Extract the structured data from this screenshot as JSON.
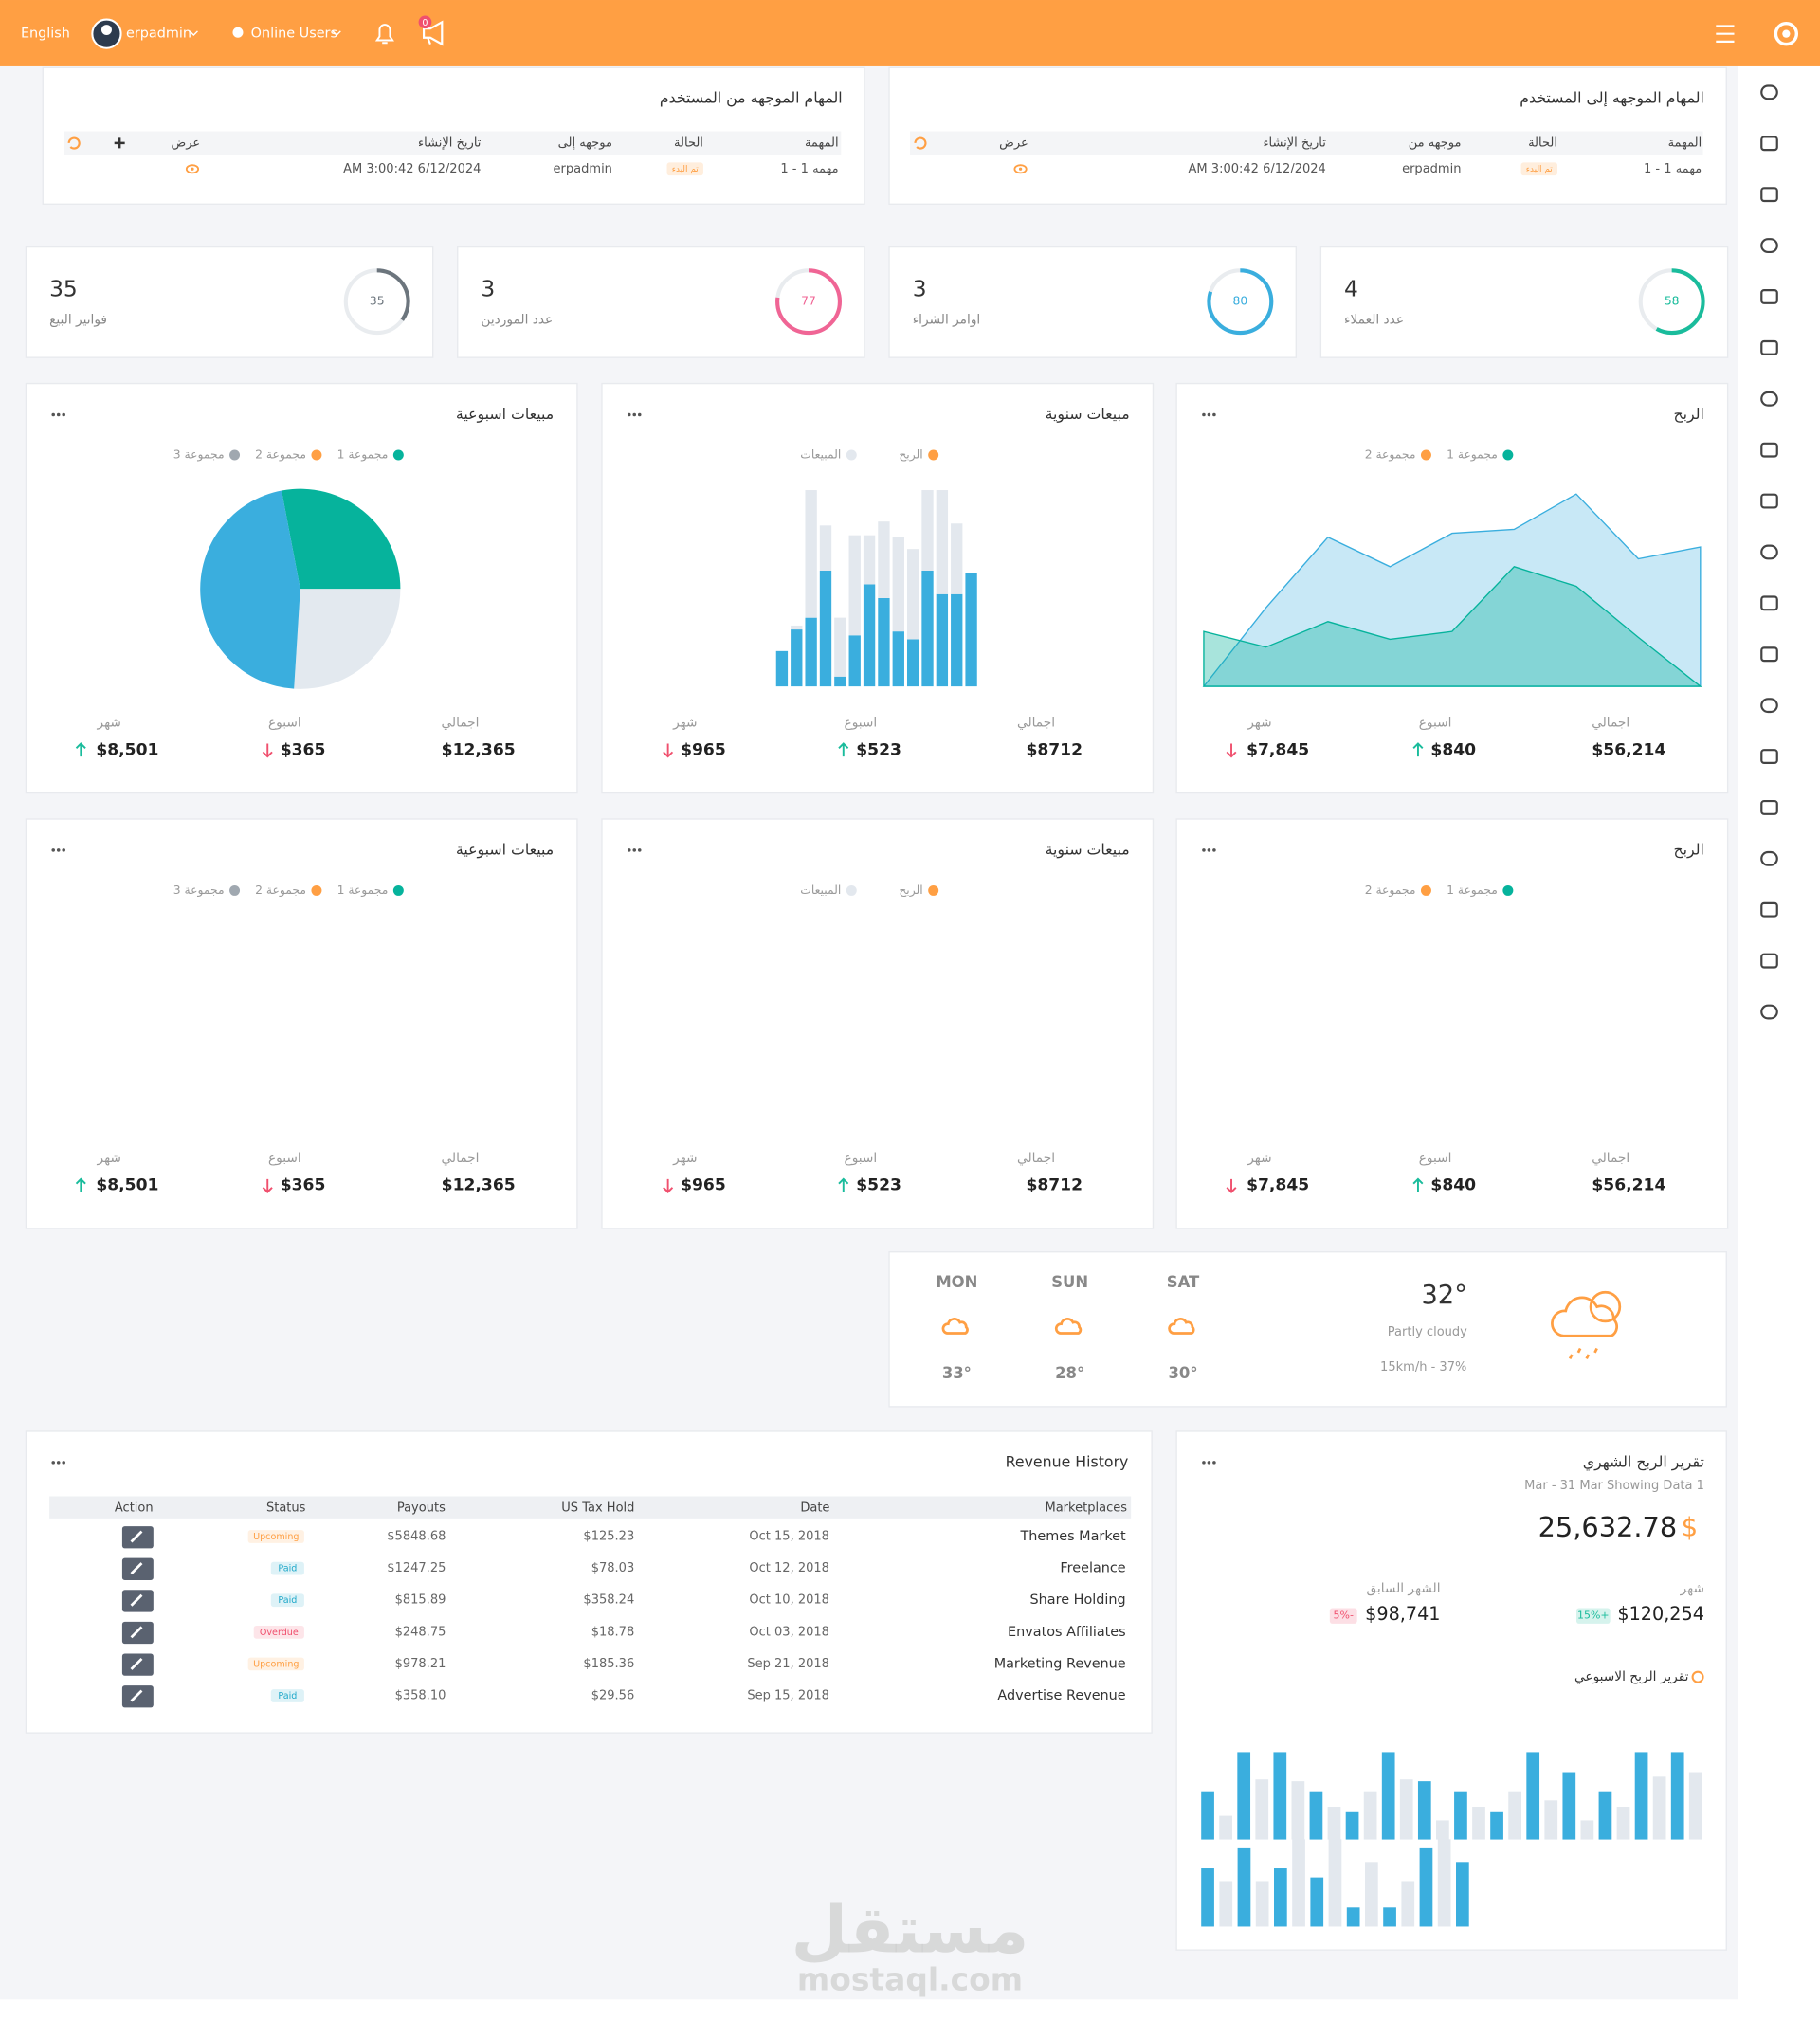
{
  "topbar": {
    "language": "English",
    "user": "erpadmin",
    "online_users": "Online Users",
    "notification_count": "0",
    "color": "#ff9f43"
  },
  "task_panels": [
    {
      "title": "المهام الموجهه إلى المستخدم",
      "columns": [
        "المهمة",
        "الحالة",
        "موجهه من",
        "تاريخ الإنشاء",
        "عرض"
      ],
      "rows": [
        [
          "مهمه 1 - 1",
          "تم البدء",
          "erpadmin",
          "AM 3:00:42 6/12/2024"
        ]
      ]
    },
    {
      "title": "المهام الموجهه من المستخدم",
      "columns": [
        "المهمة",
        "الحالة",
        "موجهه إلى",
        "تاريخ الإنشاء",
        "عرض"
      ],
      "rows": [
        [
          "مهمه 1 - 1",
          "تم البدء",
          "erpadmin",
          "AM 3:00:42 6/12/2024"
        ]
      ]
    }
  ],
  "stat_cards": [
    {
      "value": "4",
      "label": "عدد العملاء",
      "ring": 58,
      "color": "#1abc9c"
    },
    {
      "value": "3",
      "label": "اوامر الشراء",
      "ring": 80,
      "color": "#3aaede"
    },
    {
      "value": "3",
      "label": "عدد الموردين",
      "ring": 77,
      "color": "#f06595"
    },
    {
      "value": "35",
      "label": "فواتير البيع",
      "ring": 35,
      "color": "#6c757d"
    }
  ],
  "chart_cards": [
    {
      "title": "الربح",
      "type": "area",
      "legend": [
        {
          "name": "مجموعة 1",
          "color": "#06b39c"
        },
        {
          "name": "مجموعة 2",
          "color": "#ff9f43"
        }
      ],
      "ylim": [
        0,
        100
      ],
      "series": [
        {
          "color": "#3aaede",
          "values": [
            0,
            40,
            76,
            61,
            78,
            80,
            98,
            65,
            71
          ]
        },
        {
          "color": "#06b39c",
          "values": [
            28,
            20,
            33,
            24,
            28,
            61,
            51,
            25,
            0
          ]
        }
      ],
      "stats": [
        {
          "label": "اجمالي",
          "value": "$56,214"
        },
        {
          "label": "اسبوع",
          "value": "$840",
          "trend": "up"
        },
        {
          "label": "شهر",
          "value": "$7,845",
          "trend": "down"
        }
      ]
    },
    {
      "title": "مبيعات سنوية",
      "type": "bar",
      "legend": [
        {
          "name": "الربح",
          "color": "#ff9f43"
        },
        {
          "name": "المبيعات",
          "color": "#e3e8ee"
        }
      ],
      "ylim": [
        0,
        100
      ],
      "series": [
        {
          "color": "#3aaede",
          "values": [
            18,
            29,
            35,
            59,
            5,
            26,
            52,
            45,
            28,
            24,
            59,
            47,
            47,
            58
          ]
        },
        {
          "color": "#e3e8ee",
          "values": [
            0,
            2,
            65,
            23,
            30,
            51,
            25,
            39,
            48,
            46,
            41,
            53,
            36,
            0
          ]
        }
      ],
      "stats": [
        {
          "label": "اجمالي",
          "value": "$8712"
        },
        {
          "label": "اسبوع",
          "value": "$523",
          "trend": "up"
        },
        {
          "label": "شهر",
          "value": "$965",
          "trend": "down"
        }
      ]
    },
    {
      "title": "مبيعات اسبوعية",
      "type": "pie",
      "legend": [
        {
          "name": "مجموعة 1",
          "color": "#06b39c"
        },
        {
          "name": "مجموعة 2",
          "color": "#ff9f43"
        },
        {
          "name": "مجموعة 3",
          "color": "#a0a8b0"
        }
      ],
      "values": [
        28,
        26,
        46
      ],
      "colors": [
        "#06b39c",
        "#e3e9ef",
        "#3aaede"
      ],
      "stats": [
        {
          "label": "اجمالي",
          "value": "$12,365"
        },
        {
          "label": "اسبوع",
          "value": "$365",
          "trend": "down"
        },
        {
          "label": "شهر",
          "value": "$8,501",
          "trend": "up"
        }
      ]
    },
    {
      "title": "الربح",
      "legend": [
        {
          "name": "مجموعة 1",
          "color": "#06b39c"
        },
        {
          "name": "مجموعة 2",
          "color": "#ff9f43"
        }
      ],
      "stats": [
        {
          "label": "اجمالي",
          "value": "$56,214"
        },
        {
          "label": "اسبوع",
          "value": "$840",
          "trend": "up"
        },
        {
          "label": "شهر",
          "value": "$7,845",
          "trend": "down"
        }
      ]
    },
    {
      "title": "مبيعات سنوية",
      "legend": [
        {
          "name": "الربح",
          "color": "#ff9f43"
        },
        {
          "name": "المبيعات",
          "color": "#e3e8ee"
        }
      ],
      "stats": [
        {
          "label": "اجمالي",
          "value": "$8712"
        },
        {
          "label": "اسبوع",
          "value": "$523",
          "trend": "up"
        },
        {
          "label": "شهر",
          "value": "$965",
          "trend": "down"
        }
      ]
    },
    {
      "title": "مبيعات اسبوعية",
      "legend": [
        {
          "name": "مجموعة 1",
          "color": "#06b39c"
        },
        {
          "name": "مجموعة 2",
          "color": "#ff9f43"
        },
        {
          "name": "مجموعة 3",
          "color": "#a0a8b0"
        }
      ],
      "stats": [
        {
          "label": "اجمالي",
          "value": "$12,365"
        },
        {
          "label": "اسبوع",
          "value": "$365",
          "trend": "down"
        },
        {
          "label": "شهر",
          "value": "$8,501",
          "trend": "up"
        }
      ]
    }
  ],
  "weather": {
    "temperature": "32°",
    "condition": "Partly cloudy",
    "wind": "15km/h - 37%",
    "days": [
      {
        "day": "SAT",
        "temperature": "30°"
      },
      {
        "day": "SUN",
        "temperature": "28°"
      },
      {
        "day": "MON",
        "temperature": "33°"
      }
    ]
  },
  "revenue_history": {
    "title": "Revenue History",
    "columns": [
      "Marketplaces",
      "Date",
      "US Tax Hold",
      "Payouts",
      "Status",
      "Action"
    ],
    "rows": [
      [
        "Themes Market",
        "Oct 15, 2018",
        "$125.23",
        "$5848.68",
        "Upcoming"
      ],
      [
        "Freelance",
        "Oct 12, 2018",
        "$78.03",
        "$1247.25",
        "Paid"
      ],
      [
        "Share Holding",
        "Oct 10, 2018",
        "$358.24",
        "$815.89",
        "Paid"
      ],
      [
        "Envatos Affiliates",
        "Oct 03, 2018",
        "$18.78",
        "$248.75",
        "Overdue"
      ],
      [
        "Marketing Revenue",
        "Sep 21, 2018",
        "$185.36",
        "$978.21",
        "Upcoming"
      ],
      [
        "Advertise Revenue",
        "Sep 15, 2018",
        "$29.56",
        "$358.10",
        "Paid"
      ]
    ],
    "status_colors": [
      "#ff9f43",
      "#1fa8c9",
      "#1fa8c9",
      "#f0506e",
      "#ff9f43",
      "#1fa8c9"
    ]
  },
  "monthly_report": {
    "title": "تقرير الربح الشهري",
    "subtitle": "Mar - 31 Mar Showing Data 1",
    "total": "25,632.78",
    "currency": "$",
    "metrics": [
      {
        "label": "شهر",
        "value": "$120,254",
        "change": "+15%",
        "color": "#1abc9c"
      },
      {
        "label": "الشهر السابق",
        "value": "$98,741",
        "change": "-5%",
        "color": "#f0506e"
      }
    ],
    "weekly_title": "تقرير الربح الاسبوعي",
    "bar_colors": [
      "#3aaede",
      "#e3e8ee"
    ],
    "bar_rows": [
      {
        "values": [
          53,
          26,
          96,
          66,
          96,
          64,
          53,
          36,
          30,
          53,
          96,
          66,
          64,
          21,
          53,
          36,
          30,
          53,
          96,
          43,
          74,
          21,
          53,
          36,
          96,
          69,
          96,
          74
        ]
      },
      {
        "values": [
          64,
          50,
          86,
          50,
          64,
          96,
          54,
          96,
          21,
          71,
          21,
          50,
          86,
          96,
          71
        ]
      }
    ]
  },
  "watermark": {
    "arabic": "مستقل",
    "latin": "mostaql.com"
  }
}
